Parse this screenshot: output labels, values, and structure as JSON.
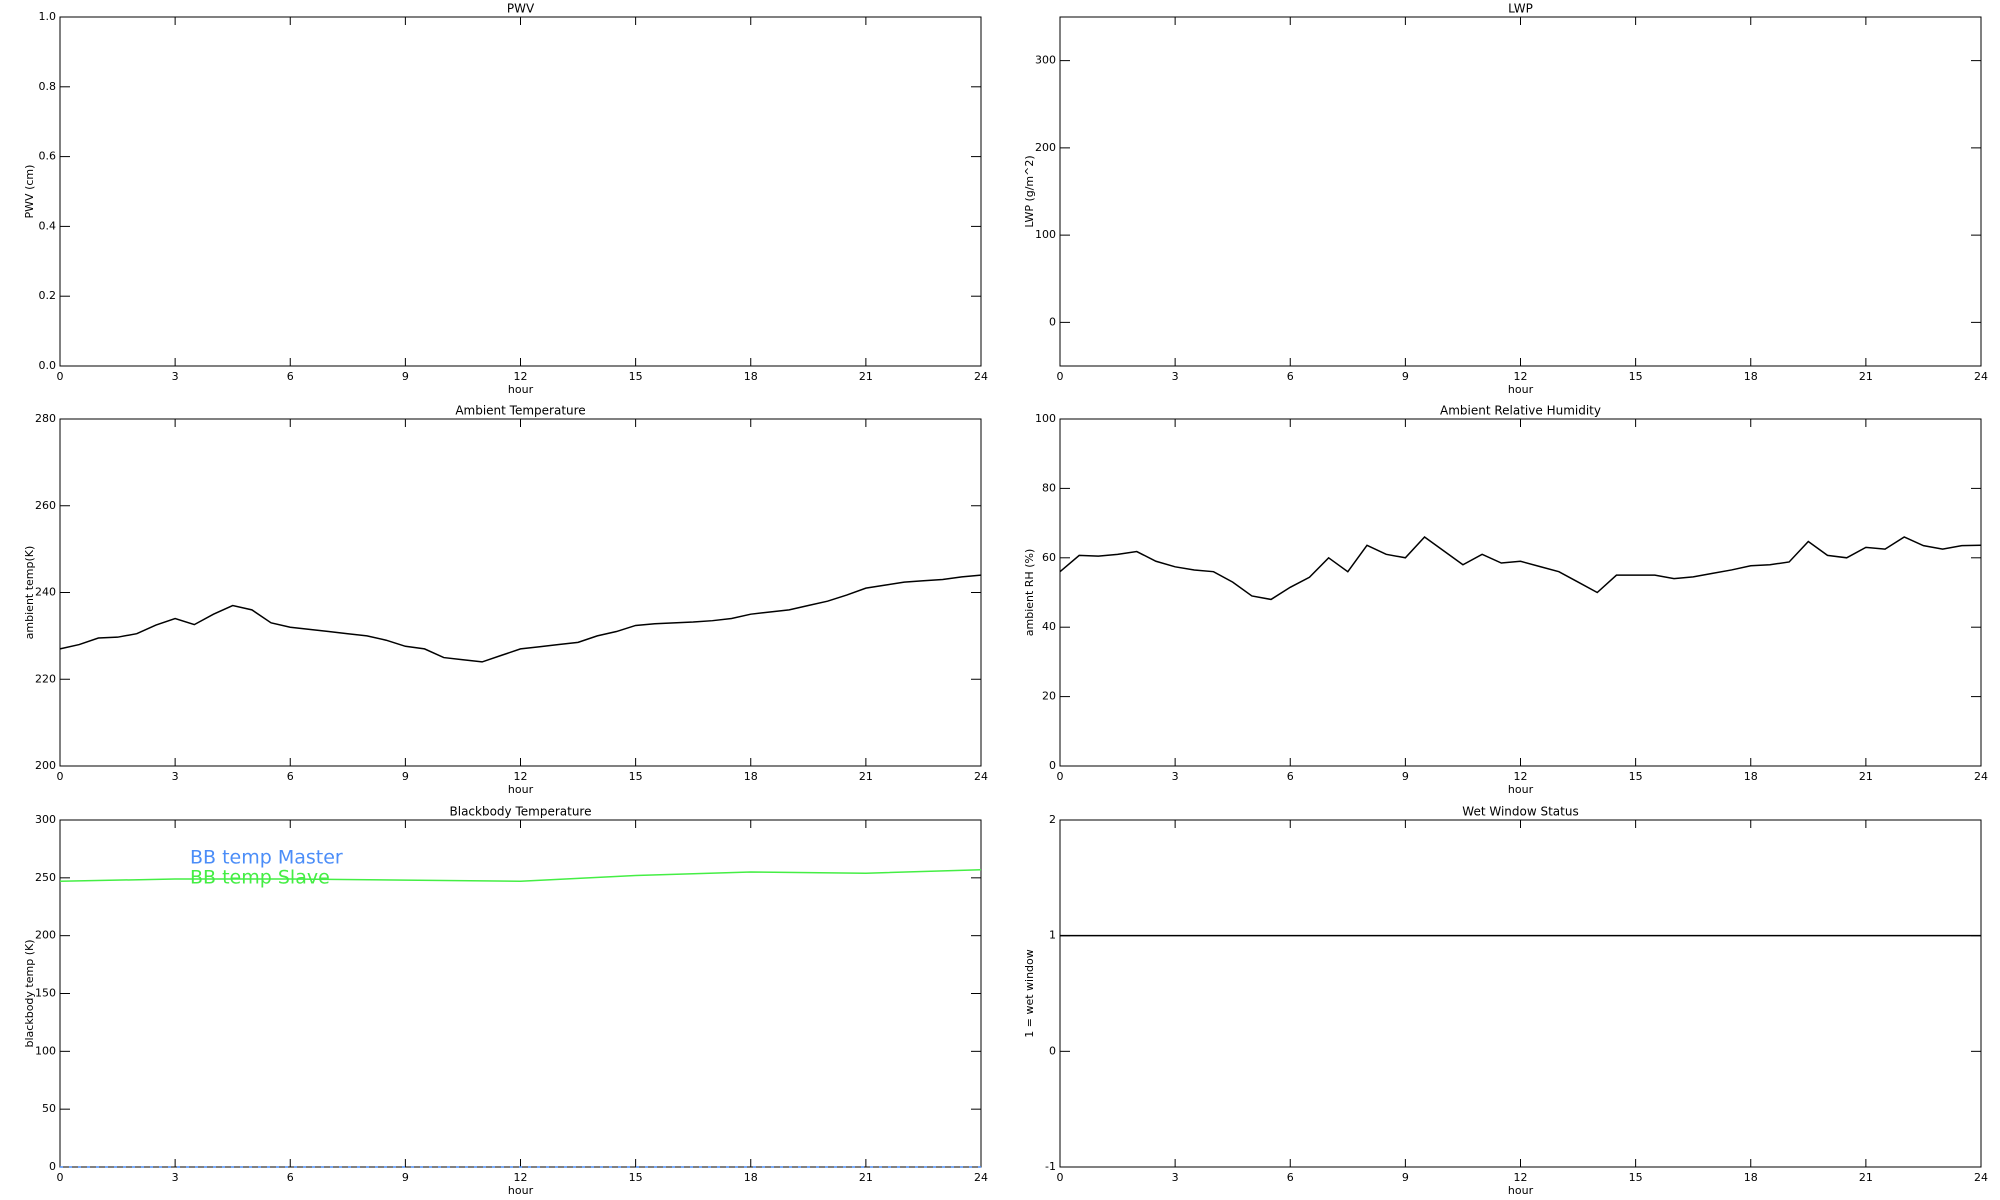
{
  "chart_data": [
    {
      "type": "line",
      "title": "PWV",
      "ylabel": "PWV (cm)",
      "xlabel": "hour",
      "xlim": [
        0,
        24
      ],
      "xticks": [
        0,
        3,
        6,
        9,
        12,
        15,
        18,
        21,
        24
      ],
      "ylim": [
        0,
        1
      ],
      "yticks": [
        {
          "value": 0,
          "label": "0.0"
        },
        0.2,
        0.4,
        0.6,
        0.8,
        {
          "value": 1,
          "label": "1.0"
        }
      ]
    },
    {
      "type": "line",
      "title": "LWP",
      "ylabel": "LWP (g/m^2)",
      "xlabel": "hour",
      "xlim": [
        0,
        24
      ],
      "xticks": [
        0,
        3,
        6,
        9,
        12,
        15,
        18,
        21,
        24
      ],
      "ylim": [
        -50,
        350
      ],
      "yticks": [
        0,
        100,
        200,
        300
      ]
    },
    {
      "type": "line",
      "title": "Ambient Temperature",
      "ylabel": "ambient temp(K)",
      "xlabel": "hour",
      "xlim": [
        0,
        24
      ],
      "xticks": [
        0,
        3,
        6,
        9,
        12,
        15,
        18,
        21,
        24
      ],
      "ylim": [
        200,
        280
      ],
      "yticks": [
        200,
        220,
        240,
        260,
        280
      ],
      "x": [
        0,
        0.5,
        1,
        1.5,
        2,
        2.5,
        3,
        3.5,
        4,
        4.5,
        5,
        5.5,
        6,
        6.5,
        7,
        7.5,
        8,
        8.5,
        9,
        9.5,
        10,
        10.5,
        11,
        11.5,
        12,
        12.5,
        13,
        13.5,
        14,
        14.5,
        15,
        15.5,
        16,
        16.5,
        17,
        17.5,
        18,
        18.5,
        19,
        19.5,
        20,
        20.5,
        21,
        21.5,
        22,
        22.5,
        23,
        23.5,
        24
      ],
      "series": [
        {
          "color": "#000000",
          "values": [
            227,
            228,
            229.5,
            229.7,
            230.5,
            232.5,
            234,
            232.6,
            235,
            237,
            236,
            233,
            232,
            231.5,
            231,
            230.5,
            230,
            229,
            227.6,
            227,
            225,
            224.5,
            224,
            225.5,
            227,
            227.5,
            228,
            228.5,
            230,
            231,
            232.4,
            232.8,
            233,
            233.2,
            233.5,
            234,
            235,
            235.5,
            236,
            237,
            238,
            239.4,
            241,
            241.7,
            242.4,
            242.7,
            243,
            243.6,
            244
          ]
        }
      ]
    },
    {
      "type": "line",
      "title": "Ambient Relative Humidity",
      "ylabel": "ambient RH (%)",
      "xlabel": "hour",
      "xlim": [
        0,
        24
      ],
      "xticks": [
        0,
        3,
        6,
        9,
        12,
        15,
        18,
        21,
        24
      ],
      "ylim": [
        0,
        100
      ],
      "yticks": [
        0,
        20,
        40,
        60,
        80,
        100
      ],
      "x": [
        0,
        0.5,
        1,
        1.5,
        2,
        2.5,
        3,
        3.5,
        4,
        4.5,
        5,
        5.5,
        6,
        6.5,
        7,
        7.5,
        8,
        8.5,
        9,
        9.5,
        10,
        10.5,
        11,
        11.5,
        12,
        12.5,
        13,
        13.5,
        14,
        14.5,
        15,
        15.5,
        16,
        16.5,
        17,
        17.5,
        18,
        18.5,
        19,
        19.5,
        20,
        20.5,
        21,
        21.5,
        22,
        22.5,
        23,
        23.5,
        24
      ],
      "series": [
        {
          "color": "#000000",
          "values": [
            56,
            60.7,
            60.5,
            61,
            61.8,
            59,
            57.4,
            56.5,
            56,
            53,
            49,
            48,
            51.5,
            54.4,
            60,
            56,
            63.6,
            61,
            60,
            66,
            62,
            58,
            61,
            58.5,
            59,
            57.5,
            56,
            53,
            50,
            55,
            55,
            55,
            54,
            54.5,
            55.5,
            56.5,
            57.7,
            58,
            58.8,
            64.7,
            60.7,
            60,
            63,
            62.5,
            66,
            63.5,
            62.5,
            63.5,
            63.6
          ]
        }
      ]
    },
    {
      "type": "line",
      "title": "Blackbody Temperature",
      "ylabel": "blackbody temp (K)",
      "xlabel": "hour",
      "xlim": [
        0,
        24
      ],
      "xticks": [
        0,
        3,
        6,
        9,
        12,
        15,
        18,
        21,
        24
      ],
      "ylim": [
        0,
        300
      ],
      "yticks": [
        0,
        50,
        100,
        150,
        200,
        250,
        300
      ],
      "legend": "upper left",
      "x": [
        0,
        3,
        6,
        9,
        12,
        15,
        18,
        21,
        24
      ],
      "series": [
        {
          "name": "BB temp Master",
          "color": "#4b8df8",
          "dash": true,
          "values": [
            0,
            0,
            0,
            0,
            0,
            0,
            0,
            0,
            0
          ]
        },
        {
          "name": "BB temp Slave",
          "color": "#44ee44",
          "values": [
            247,
            249,
            249,
            248,
            247,
            252,
            255,
            254,
            257
          ]
        }
      ]
    },
    {
      "type": "line",
      "title": "Wet Window Status",
      "ylabel": "1 = wet window",
      "xlabel": "hour",
      "xlim": [
        0,
        24
      ],
      "xticks": [
        0,
        3,
        6,
        9,
        12,
        15,
        18,
        21,
        24
      ],
      "ylim": [
        -1,
        2
      ],
      "yticks": [
        -1,
        0,
        1,
        2
      ],
      "x": [
        0,
        24
      ],
      "series": [
        {
          "color": "#000000",
          "values": [
            1,
            1
          ]
        }
      ]
    }
  ]
}
